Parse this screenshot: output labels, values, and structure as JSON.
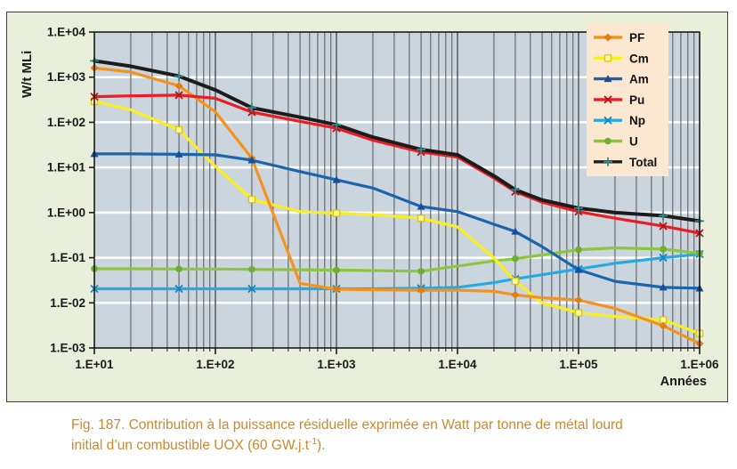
{
  "caption": {
    "line1": "Fig. 187. Contribution à la puissance résiduelle exprimée en Watt par tonne de métal lourd",
    "line2_pre": "initial d’un combustible UOX (60 GW.j.t",
    "line2_sup": "-1",
    "line2_post": ")."
  },
  "colors": {
    "figure_bg": "#E9EFDB",
    "plot_bg": "#CBD5DE",
    "vgrid": "#4D4D4D",
    "hgrid": "#FFFFFF",
    "plot_border": "#1A1A1A",
    "axis_text": "#1A1A1A",
    "legend_bg": "#FCE8D0",
    "caption_text": "#C9892C"
  },
  "chart_data": {
    "type": "line",
    "x_scale": "log",
    "y_scale": "log",
    "xlabel": "Années",
    "ylabel": "W/t MLi",
    "x_range": [
      10,
      1000000
    ],
    "y_range": [
      0.001,
      10000
    ],
    "x_tick_labels": [
      "1.E+01",
      "1.E+02",
      "1.E+03",
      "1.E+04",
      "1.E+05",
      "1.E+06"
    ],
    "y_tick_labels": [
      "1.E+04",
      "1.E+03",
      "1.E+02",
      "1.E+01",
      "1.E+00",
      "1.E-01",
      "1.E-02",
      "1.E-03"
    ],
    "legend_position": "top-right",
    "grid": "log-minor-vertical-dark, major-horizontal-white",
    "x": [
      10,
      20,
      50,
      100,
      200,
      500,
      1000,
      2000,
      5000,
      10000,
      20000,
      30000,
      50000,
      100000,
      200000,
      500000,
      1000000
    ],
    "marker_x": [
      10,
      50,
      200,
      1000,
      5000,
      30000,
      100000,
      500000,
      1000000
    ],
    "series": [
      {
        "name": "PF",
        "color": "#F5921E",
        "marker": "diamond",
        "marker_color": "#E07E12",
        "values": [
          1600,
          1300,
          640,
          170,
          16,
          0.027,
          0.02,
          0.0195,
          0.019,
          0.019,
          0.018,
          0.015,
          0.013,
          0.0115,
          0.0075,
          0.0031,
          0.00125
        ]
      },
      {
        "name": "Cm",
        "color": "#FAEE1C",
        "marker": "square",
        "marker_color": "#DCC900",
        "values": [
          290,
          190,
          68,
          10.5,
          1.95,
          1.05,
          0.97,
          0.9,
          0.75,
          0.48,
          0.1,
          0.03,
          0.01,
          0.006,
          0.005,
          0.0042,
          0.0021
        ]
      },
      {
        "name": "Am",
        "color": "#1B64AE",
        "marker": "triangle",
        "marker_color": "#134F9B",
        "values": [
          20,
          20,
          19.5,
          19,
          14.5,
          8.1,
          5.3,
          3.5,
          1.36,
          1.05,
          0.55,
          0.38,
          0.175,
          0.054,
          0.03,
          0.022,
          0.021
        ]
      },
      {
        "name": "Pu",
        "color": "#EC1C24",
        "marker": "x",
        "marker_color": "#B5121B",
        "values": [
          370,
          385,
          400,
          340,
          168,
          105,
          74,
          40,
          22,
          17,
          5.8,
          2.9,
          1.7,
          1.05,
          0.75,
          0.5,
          0.35
        ]
      },
      {
        "name": "Np",
        "color": "#27A9E1",
        "marker": "x",
        "marker_color": "#1186C3",
        "values": [
          0.0205,
          0.0205,
          0.0205,
          0.0205,
          0.0205,
          0.0205,
          0.0205,
          0.0205,
          0.021,
          0.022,
          0.028,
          0.034,
          0.042,
          0.056,
          0.075,
          0.1,
          0.12
        ]
      },
      {
        "name": "U",
        "color": "#8CC63F",
        "marker": "circle",
        "marker_color": "#6FAF2F",
        "values": [
          0.057,
          0.057,
          0.056,
          0.056,
          0.055,
          0.054,
          0.053,
          0.052,
          0.05,
          0.065,
          0.085,
          0.095,
          0.115,
          0.15,
          0.165,
          0.155,
          0.125
        ]
      },
      {
        "name": "Total",
        "color": "#1C1C1C",
        "marker": "plus",
        "marker_color": "#2E8C8C",
        "values": [
          2300,
          1750,
          1050,
          520,
          210,
          130,
          88,
          47,
          25,
          19,
          6.5,
          3.2,
          1.9,
          1.25,
          1.0,
          0.85,
          0.65
        ]
      }
    ]
  }
}
